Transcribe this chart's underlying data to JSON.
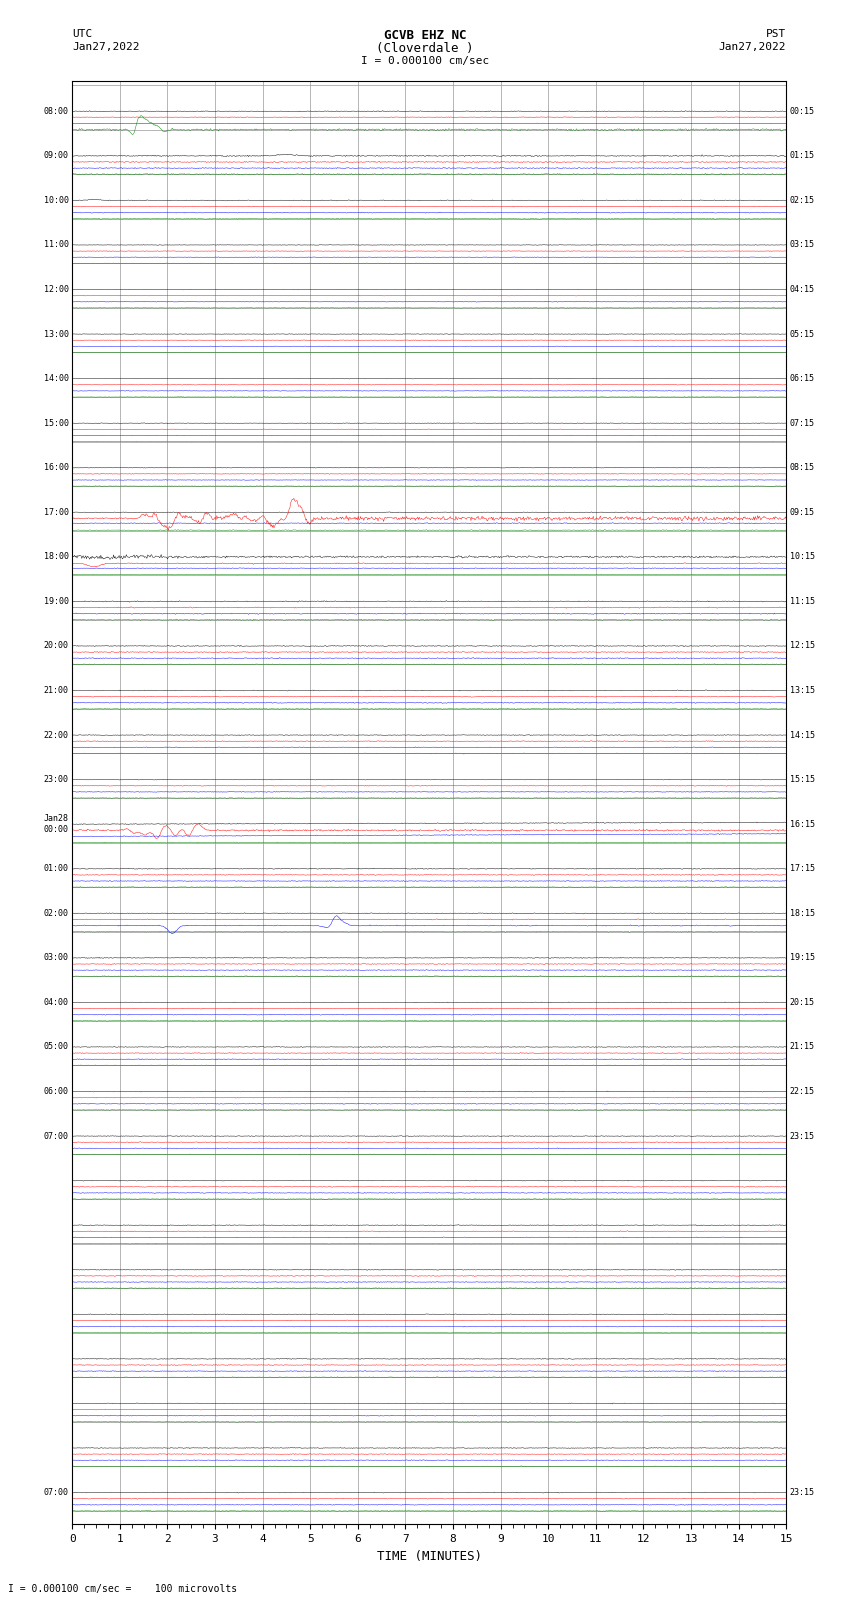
{
  "title_line1": "GCVB EHZ NC",
  "title_line2": "(Cloverdale )",
  "scale_label": "I = 0.000100 cm/sec",
  "utc_label": "UTC",
  "pst_label": "PST",
  "date_left": "Jan27,2022",
  "date_right": "Jan27,2022",
  "xlabel": "TIME (MINUTES)",
  "footer": "I = 0.000100 cm/sec =    100 microvolts",
  "bg_color": "#ffffff",
  "grid_color": "#999999",
  "trace_colors": [
    "black",
    "red",
    "blue",
    "green"
  ],
  "n_groups": 32,
  "traces_per_group": 4,
  "group_labels_left": [
    "08:00",
    "09:00",
    "10:00",
    "11:00",
    "12:00",
    "13:00",
    "14:00",
    "15:00",
    "16:00",
    "17:00",
    "18:00",
    "19:00",
    "20:00",
    "21:00",
    "22:00",
    "23:00",
    "Jan28\n00:00",
    "01:00",
    "02:00",
    "03:00",
    "04:00",
    "05:00",
    "06:00",
    "07:00",
    "",
    "",
    "",
    "",
    "",
    "",
    "",
    "07:00"
  ],
  "group_labels_right": [
    "00:15",
    "01:15",
    "02:15",
    "03:15",
    "04:15",
    "05:15",
    "06:15",
    "07:15",
    "08:15",
    "09:15",
    "10:15",
    "11:15",
    "12:15",
    "13:15",
    "14:15",
    "15:15",
    "16:15",
    "17:15",
    "18:15",
    "19:15",
    "20:15",
    "21:15",
    "22:15",
    "23:15",
    "",
    "",
    "",
    "",
    "",
    "",
    "",
    "23:15"
  ]
}
